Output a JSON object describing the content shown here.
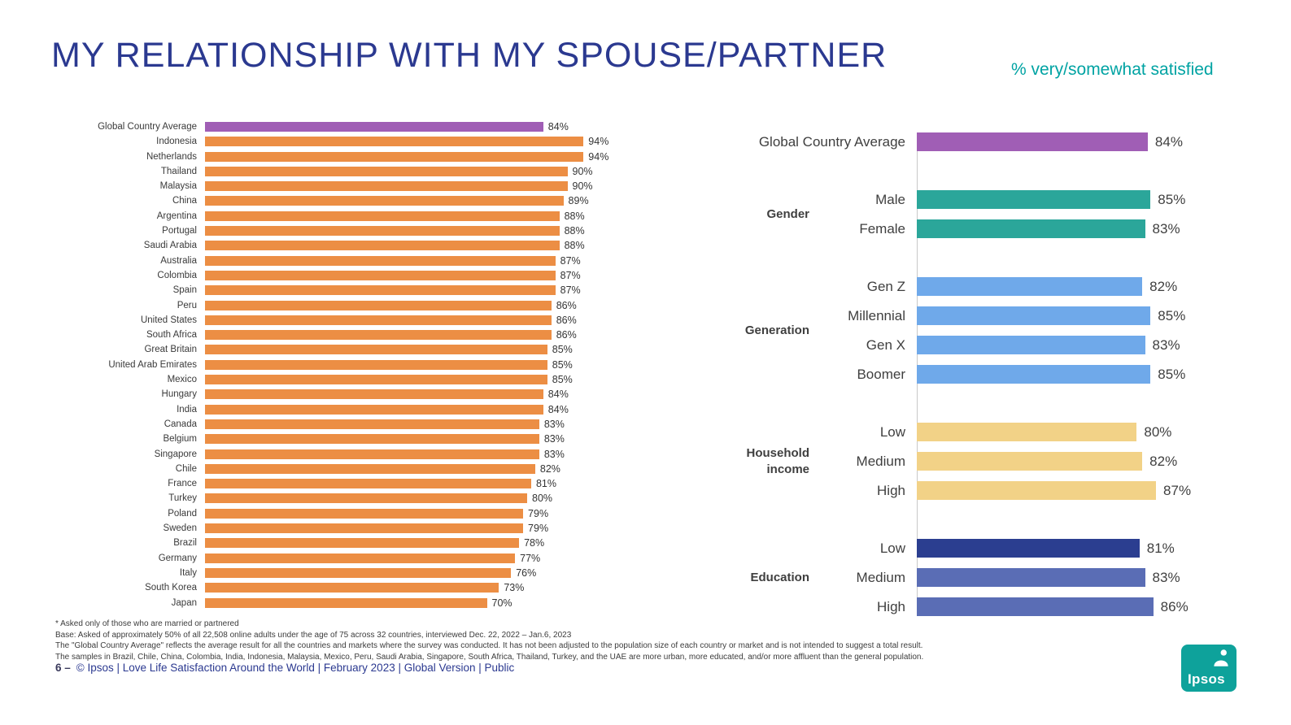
{
  "header": {
    "title": "MY RELATIONSHIP WITH MY SPOUSE/PARTNER",
    "subtitle": "% very/somewhat satisfied"
  },
  "chart_data": [
    {
      "type": "bar",
      "orientation": "horizontal",
      "title": "Country results",
      "unit": "%",
      "xlim": [
        0,
        100
      ],
      "highlight_color": "#A05EB5",
      "bar_color": "#EC8E44",
      "categories": [
        "Global Country Average",
        "Indonesia",
        "Netherlands",
        "Thailand",
        "Malaysia",
        "China",
        "Argentina",
        "Portugal",
        "Saudi Arabia",
        "Australia",
        "Colombia",
        "Spain",
        "Peru",
        "United States",
        "South Africa",
        "Great Britain",
        "United Arab Emirates",
        "Mexico",
        "Hungary",
        "India",
        "Canada",
        "Belgium",
        "Singapore",
        "Chile",
        "France",
        "Turkey",
        "Poland",
        "Sweden",
        "Brazil",
        "Germany",
        "Italy",
        "South Korea",
        "Japan"
      ],
      "values": [
        84,
        94,
        94,
        90,
        90,
        89,
        88,
        88,
        88,
        87,
        87,
        87,
        86,
        86,
        86,
        85,
        85,
        85,
        84,
        84,
        83,
        83,
        83,
        82,
        81,
        80,
        79,
        79,
        78,
        77,
        76,
        73,
        70
      ]
    },
    {
      "type": "bar",
      "orientation": "horizontal",
      "title": "Demographic results",
      "unit": "%",
      "xlim": [
        0,
        100
      ],
      "groups": [
        {
          "name": "",
          "color": "#A05EB5",
          "items": [
            {
              "label": "Global Country Average",
              "value": 84
            }
          ]
        },
        {
          "name": "Gender",
          "color": "#2BA69A",
          "items": [
            {
              "label": "Male",
              "value": 85
            },
            {
              "label": "Female",
              "value": 83
            }
          ]
        },
        {
          "name": "Generation",
          "color": "#6FA9EA",
          "items": [
            {
              "label": "Gen Z",
              "value": 82
            },
            {
              "label": "Millennial",
              "value": 85
            },
            {
              "label": "Gen X",
              "value": 83
            },
            {
              "label": "Boomer",
              "value": 85
            }
          ]
        },
        {
          "name": "Household income",
          "color": "#F2D287",
          "items": [
            {
              "label": "Low",
              "value": 80
            },
            {
              "label": "Medium",
              "value": 82
            },
            {
              "label": "High",
              "value": 87
            }
          ]
        },
        {
          "name": "Education",
          "color": "#5A6DB5",
          "items": [
            {
              "label": "Low",
              "value": 81,
              "color": "#2B3E90"
            },
            {
              "label": "Medium",
              "value": 83
            },
            {
              "label": "High",
              "value": 86
            }
          ]
        }
      ]
    }
  ],
  "footnotes": [
    "* Asked only of those who are married or partnered",
    "Base: Asked of approximately 50% of all 22,508 online adults under the age of 75 across 32 countries, interviewed Dec. 22, 2022 – Jan.6, 2023",
    "The \"Global Country Average\" reflects the average result for all the countries and markets where the survey was conducted. It has not been adjusted to the population size of each country or market and is not intended to suggest a total result.",
    "The samples in Brazil, Chile, China, Colombia, India, Indonesia, Malaysia, Mexico, Peru, Saudi Arabia, Singapore, South Africa, Thailand, Turkey, and the UAE are more urban, more educated, and/or more affluent than the general population.",
    "6 –",
    "© Ipsos | Love Life Satisfaction Around the World | February 2023 | Global Version | Public"
  ],
  "footer": {
    "page_label": "6 –",
    "text": "© Ipsos | Love Life Satisfaction Around the World | February 2023 | Global Version | Public"
  },
  "logo": {
    "text": "Ipsos",
    "color": "#0EA29B"
  },
  "colors": {
    "title": "#2B3990",
    "subtitle": "#00A3A3",
    "orange": "#EC8E44",
    "purple": "#A05EB5",
    "teal": "#2BA69A",
    "light_blue": "#6FA9EA",
    "yellow": "#F2D287",
    "navy": "#2B3E90",
    "slate_blue": "#5A6DB5"
  }
}
